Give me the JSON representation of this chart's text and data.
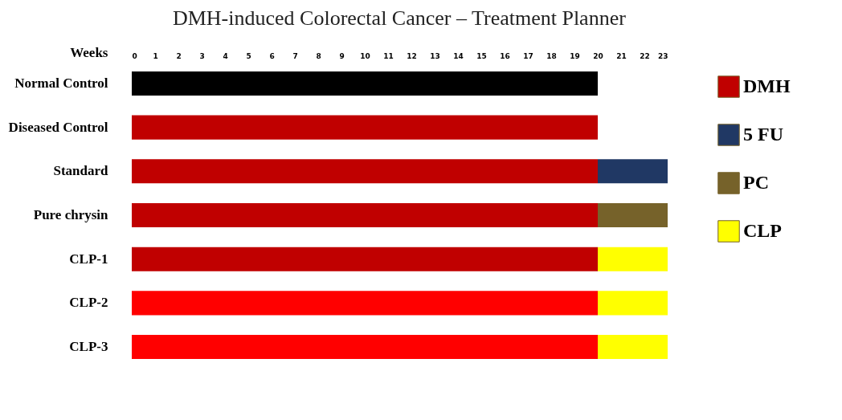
{
  "chart_data": {
    "type": "bar",
    "orientation": "horizontal",
    "stacked": true,
    "title": "DMH-induced Colorectal Cancer – Treatment Planner",
    "xlabel": "Weeks",
    "categories": [
      "Normal Control",
      "Diseased Control",
      "Standard",
      "Pure chrysin",
      "CLP-1",
      "CLP-2",
      "CLP-3"
    ],
    "xlim": [
      0,
      23
    ],
    "xticks": [
      0,
      1,
      2,
      3,
      4,
      5,
      6,
      7,
      8,
      9,
      10,
      11,
      12,
      13,
      14,
      15,
      16,
      17,
      18,
      19,
      20,
      21,
      22,
      23
    ],
    "grid": false,
    "legend": "right",
    "series": [
      {
        "color": "#000000",
        "values": [
          20,
          null,
          null,
          null,
          null,
          null,
          null
        ]
      },
      {
        "name": "DMH",
        "color": "#c00000",
        "colors": [
          null,
          "#c00000",
          "#c00000",
          "#c00000",
          "#c00000",
          "#ff0000",
          "#ff0000"
        ],
        "values": [
          null,
          20,
          20,
          20,
          20,
          20,
          20
        ]
      },
      {
        "name": "5 FU",
        "color": "#203864",
        "values": [
          null,
          null,
          3,
          null,
          null,
          null,
          null
        ]
      },
      {
        "name": "PC",
        "color": "#76622a",
        "values": [
          null,
          null,
          null,
          3,
          null,
          null,
          null
        ]
      },
      {
        "name": "CLP",
        "color": "#ffff00",
        "values": [
          null,
          null,
          null,
          null,
          3,
          3,
          3
        ]
      }
    ]
  }
}
